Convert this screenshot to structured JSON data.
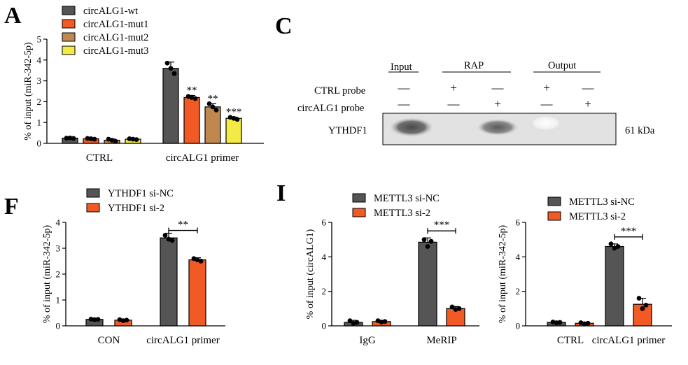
{
  "colors": {
    "wt": "#555555",
    "mut1": "#f15a24",
    "mut2": "#c0874e",
    "mut3": "#f4ea45",
    "si_nc": "#555555",
    "si_2": "#f15a24"
  },
  "chart_data": [
    {
      "panel": "A",
      "type": "bar",
      "ylabel": "% of input (miR-342-5p)",
      "ylim": [
        0,
        5
      ],
      "yticks": [
        "0",
        "1",
        "2",
        "3",
        "4",
        "5"
      ],
      "categories": [
        "CTRL",
        "circALG1 primer"
      ],
      "legend_position": "top-left",
      "series": [
        {
          "name": "circALG1-wt",
          "values": [
            0.25,
            3.6
          ],
          "err": [
            0.05,
            0.3
          ],
          "points": [
            [
              0.25,
              0.26,
              0.24
            ],
            [
              3.85,
              3.6,
              3.35
            ]
          ],
          "sig": [
            "",
            ""
          ]
        },
        {
          "name": "circALG1-mut1",
          "values": [
            0.22,
            2.2
          ],
          "err": [
            0.05,
            0.1
          ],
          "points": [
            [
              0.24,
              0.22,
              0.2
            ],
            [
              2.25,
              2.2,
              2.15
            ]
          ],
          "sig": [
            "",
            "**"
          ]
        },
        {
          "name": "circALG1-mut2",
          "values": [
            0.15,
            1.75
          ],
          "err": [
            0.06,
            0.15
          ],
          "points": [
            [
              0.2,
              0.15,
              0.1
            ],
            [
              1.9,
              1.75,
              1.6
            ]
          ],
          "sig": [
            "",
            "**"
          ]
        },
        {
          "name": "circALG1-mut3",
          "values": [
            0.2,
            1.2
          ],
          "err": [
            0.04,
            0.06
          ],
          "points": [
            [
              0.22,
              0.2,
              0.18
            ],
            [
              1.25,
              1.2,
              1.15
            ]
          ],
          "sig": [
            "",
            "***"
          ]
        }
      ]
    },
    {
      "panel": "F",
      "type": "bar",
      "ylabel": "% of input (miR-342-5p)",
      "ylim": [
        0,
        4
      ],
      "yticks": [
        "0",
        "1",
        "2",
        "3",
        "4"
      ],
      "categories": [
        "CON",
        "circALG1 primer"
      ],
      "legend_position": "top",
      "significance": "**",
      "series": [
        {
          "name": "YTHDF1 si-NC",
          "values": [
            0.25,
            3.4
          ],
          "err": [
            0.04,
            0.18
          ],
          "points": [
            [
              0.26,
              0.24,
              0.25
            ],
            [
              3.5,
              3.35,
              3.3
            ]
          ]
        },
        {
          "name": "YTHDF1 si-2",
          "values": [
            0.22,
            2.55
          ],
          "err": [
            0.04,
            0.08
          ],
          "points": [
            [
              0.24,
              0.2,
              0.22
            ],
            [
              2.6,
              2.55,
              2.5
            ]
          ]
        }
      ]
    },
    {
      "panel": "I-left",
      "type": "bar",
      "ylabel": "% of input (circALG1)",
      "ylim": [
        0,
        6
      ],
      "yticks": [
        "0",
        "2",
        "4",
        "6"
      ],
      "categories": [
        "IgG",
        "MeRIP"
      ],
      "legend_position": "top",
      "significance": "***",
      "series": [
        {
          "name": "METTL3 si-NC",
          "values": [
            0.2,
            4.85
          ],
          "err": [
            0.12,
            0.25
          ],
          "points": [
            [
              0.3,
              0.15,
              0.2
            ],
            [
              5.0,
              4.6,
              4.9
            ]
          ]
        },
        {
          "name": "METTL3 si-2",
          "values": [
            0.25,
            1.0
          ],
          "err": [
            0.06,
            0.12
          ],
          "points": [
            [
              0.3,
              0.22,
              0.25
            ],
            [
              1.1,
              0.95,
              1.0
            ]
          ]
        }
      ]
    },
    {
      "panel": "I-right",
      "type": "bar",
      "ylabel": "% of input (miR-342-5p)",
      "ylim": [
        0,
        6
      ],
      "yticks": [
        "0",
        "2",
        "4",
        "6"
      ],
      "categories": [
        "CTRL",
        "circALG1 primer"
      ],
      "legend_position": "top",
      "significance": "***",
      "series": [
        {
          "name": "METTL3 si-NC",
          "values": [
            0.2,
            4.6
          ],
          "err": [
            0.06,
            0.15
          ],
          "points": [
            [
              0.22,
              0.18,
              0.2
            ],
            [
              4.75,
              4.5,
              4.6
            ]
          ]
        },
        {
          "name": "METTL3 si-2",
          "values": [
            0.15,
            1.25
          ],
          "err": [
            0.05,
            0.35
          ],
          "points": [
            [
              0.18,
              0.12,
              0.15
            ],
            [
              1.6,
              1.0,
              1.2
            ]
          ]
        }
      ]
    }
  ],
  "blot": {
    "panel": "C",
    "groups": [
      "Input",
      "RAP",
      "Output"
    ],
    "rows": [
      {
        "label": "CTRL probe",
        "marks": [
          "—",
          "+",
          "—",
          "+",
          "—"
        ]
      },
      {
        "label": "circALG1 probe",
        "marks": [
          "—",
          "—",
          "+",
          "—",
          "+"
        ]
      }
    ],
    "band_label": "YTHDF1",
    "size_label": "61 kDa"
  }
}
